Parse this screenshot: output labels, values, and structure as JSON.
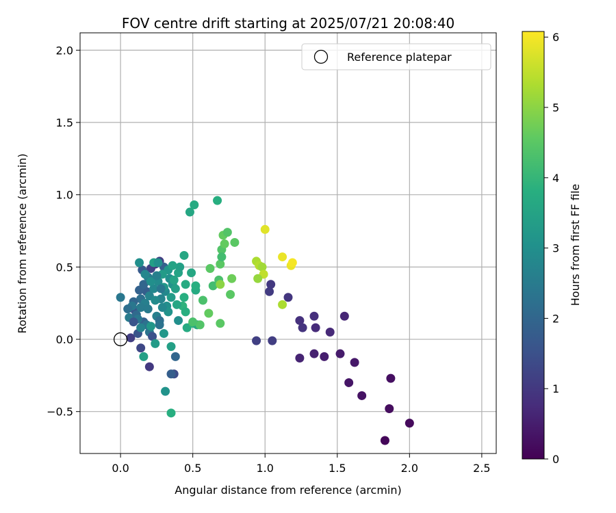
{
  "chart_data": {
    "type": "scatter",
    "title": "FOV centre drift starting at 2025/07/21 20:08:40",
    "xlabel": "Angular distance from reference (arcmin)",
    "ylabel": "Rotation from reference (arcmin)",
    "xlim": [
      -0.28,
      2.6
    ],
    "ylim": [
      -0.79,
      2.12
    ],
    "xticks": [
      0.0,
      0.5,
      1.0,
      1.5,
      2.0,
      2.5
    ],
    "xtick_labels": [
      "0.0",
      "0.5",
      "1.0",
      "1.5",
      "2.0",
      "2.5"
    ],
    "yticks": [
      -0.5,
      0.0,
      0.5,
      1.0,
      1.5,
      2.0
    ],
    "ytick_labels": [
      "−0.5",
      "0.0",
      "0.5",
      "1.0",
      "1.5",
      "2.0"
    ],
    "grid": true,
    "legend": {
      "position": "top-right",
      "entries": [
        "Reference platepar"
      ]
    },
    "reference_point": {
      "x": 0.0,
      "y": 0.0
    },
    "colorbar": {
      "label": "Hours from first FF file",
      "colormap": "viridis",
      "range": [
        0,
        6.08
      ],
      "ticks": [
        0,
        1,
        2,
        3,
        4,
        5,
        6
      ],
      "tick_labels": [
        "0",
        "1",
        "2",
        "3",
        "4",
        "5",
        "6"
      ]
    },
    "points": [
      [
        1.83,
        -0.7,
        0.1
      ],
      [
        2.0,
        -0.58,
        0.15
      ],
      [
        1.86,
        -0.48,
        0.2
      ],
      [
        1.87,
        -0.27,
        0.25
      ],
      [
        1.67,
        -0.39,
        0.3
      ],
      [
        1.58,
        -0.3,
        0.35
      ],
      [
        1.62,
        -0.16,
        0.4
      ],
      [
        1.52,
        -0.1,
        0.45
      ],
      [
        1.41,
        -0.12,
        0.5
      ],
      [
        1.34,
        -0.1,
        0.55
      ],
      [
        1.24,
        -0.13,
        0.6
      ],
      [
        1.55,
        0.16,
        0.65
      ],
      [
        1.45,
        0.05,
        0.7
      ],
      [
        1.35,
        0.08,
        0.75
      ],
      [
        1.34,
        0.16,
        0.8
      ],
      [
        1.24,
        0.13,
        0.85
      ],
      [
        1.26,
        0.08,
        0.9
      ],
      [
        1.16,
        0.29,
        0.95
      ],
      [
        1.04,
        0.38,
        1.0
      ],
      [
        1.03,
        0.33,
        1.05
      ],
      [
        1.05,
        -0.01,
        1.1
      ],
      [
        0.94,
        -0.01,
        1.15
      ],
      [
        0.2,
        -0.19,
        1.0
      ],
      [
        0.07,
        0.01,
        1.1
      ],
      [
        0.14,
        -0.06,
        1.3
      ],
      [
        0.37,
        -0.24,
        1.4
      ],
      [
        0.35,
        -0.24,
        1.8
      ],
      [
        0.38,
        -0.12,
        2.0
      ],
      [
        0.1,
        0.2,
        1.5
      ],
      [
        0.12,
        0.04,
        1.6
      ],
      [
        0.15,
        0.48,
        1.7
      ],
      [
        0.21,
        0.49,
        1.2
      ],
      [
        0.24,
        0.52,
        0.9
      ],
      [
        0.27,
        0.54,
        1.1
      ],
      [
        0.3,
        0.5,
        1.9
      ],
      [
        0.22,
        0.41,
        2.1
      ],
      [
        0.18,
        0.33,
        1.8
      ],
      [
        0.14,
        0.28,
        2.2
      ],
      [
        0.09,
        0.26,
        2.0
      ],
      [
        0.08,
        0.23,
        2.4
      ],
      [
        0.06,
        0.15,
        2.5
      ],
      [
        0.11,
        0.17,
        2.1
      ],
      [
        0.16,
        0.12,
        1.9
      ],
      [
        0.2,
        0.05,
        2.3
      ],
      [
        0.25,
        0.16,
        2.6
      ],
      [
        0.28,
        0.28,
        2.7
      ],
      [
        0.31,
        0.33,
        2.8
      ],
      [
        0.34,
        0.42,
        3.0
      ],
      [
        0.36,
        0.38,
        3.1
      ],
      [
        0.33,
        0.48,
        3.2
      ],
      [
        0.29,
        0.45,
        3.3
      ],
      [
        0.26,
        0.4,
        2.9
      ],
      [
        0.23,
        0.35,
        2.8
      ],
      [
        0.2,
        0.3,
        2.7
      ],
      [
        0.17,
        0.25,
        2.6
      ],
      [
        0.14,
        0.22,
        2.5
      ],
      [
        0.12,
        0.14,
        2.4
      ],
      [
        0.18,
        0.1,
        2.3
      ],
      [
        0.22,
        0.02,
        1.5
      ],
      [
        0.27,
        0.13,
        2.2
      ],
      [
        0.32,
        0.23,
        3.0
      ],
      [
        0.35,
        0.29,
        3.3
      ],
      [
        0.38,
        0.35,
        3.4
      ],
      [
        0.4,
        0.46,
        3.5
      ],
      [
        0.41,
        0.5,
        3.4
      ],
      [
        0.44,
        0.58,
        3.6
      ],
      [
        0.45,
        0.38,
        3.7
      ],
      [
        0.44,
        0.29,
        3.8
      ],
      [
        0.43,
        0.23,
        3.9
      ],
      [
        0.45,
        0.19,
        3.8
      ],
      [
        0.4,
        0.13,
        3.0
      ],
      [
        0.46,
        0.08,
        3.7
      ],
      [
        0.5,
        0.11,
        3.9
      ],
      [
        0.53,
        0.1,
        3.6
      ],
      [
        0.49,
        0.46,
        3.6
      ],
      [
        0.52,
        0.34,
        3.7
      ],
      [
        0.52,
        0.37,
        3.8
      ],
      [
        0.48,
        0.88,
        3.6
      ],
      [
        0.51,
        0.93,
        3.7
      ],
      [
        0.67,
        0.96,
        3.8
      ],
      [
        0.55,
        0.1,
        4.4
      ],
      [
        0.5,
        0.12,
        4.3
      ],
      [
        0.57,
        0.27,
        4.3
      ],
      [
        0.61,
        0.18,
        4.6
      ],
      [
        0.62,
        0.49,
        4.5
      ],
      [
        0.64,
        0.37,
        4.2
      ],
      [
        0.68,
        0.41,
        4.3
      ],
      [
        0.69,
        0.11,
        4.5
      ],
      [
        0.69,
        0.52,
        4.5
      ],
      [
        0.7,
        0.62,
        4.4
      ],
      [
        0.71,
        0.72,
        4.6
      ],
      [
        0.7,
        0.57,
        4.2
      ],
      [
        0.72,
        0.66,
        4.6
      ],
      [
        0.74,
        0.74,
        4.4
      ],
      [
        0.76,
        0.31,
        4.5
      ],
      [
        0.77,
        0.42,
        4.7
      ],
      [
        0.79,
        0.67,
        4.5
      ],
      [
        0.69,
        0.38,
        5.0
      ],
      [
        0.94,
        0.54,
        5.3
      ],
      [
        0.96,
        0.51,
        5.4
      ],
      [
        0.98,
        0.5,
        5.2
      ],
      [
        0.99,
        0.45,
        5.5
      ],
      [
        0.95,
        0.42,
        5.1
      ],
      [
        1.0,
        0.76,
        5.8
      ],
      [
        1.12,
        0.24,
        5.3
      ],
      [
        1.12,
        0.57,
        5.9
      ],
      [
        1.18,
        0.51,
        5.9
      ],
      [
        1.19,
        0.53,
        6.0
      ],
      [
        0.0,
        0.29,
        2.4
      ],
      [
        0.05,
        0.21,
        2.2
      ],
      [
        0.09,
        0.12,
        1.6
      ],
      [
        0.13,
        0.34,
        1.9
      ],
      [
        0.16,
        0.38,
        2.0
      ],
      [
        0.19,
        0.43,
        2.5
      ],
      [
        0.21,
        0.4,
        3.0
      ],
      [
        0.25,
        0.44,
        2.6
      ],
      [
        0.24,
        0.27,
        2.9
      ],
      [
        0.3,
        0.36,
        3.2
      ],
      [
        0.33,
        0.19,
        3.1
      ],
      [
        0.27,
        0.1,
        2.3
      ],
      [
        0.19,
        0.21,
        2.5
      ],
      [
        0.14,
        0.08,
        2.7
      ],
      [
        0.13,
        0.53,
        3.0
      ],
      [
        0.16,
        -0.12,
        3.4
      ],
      [
        0.24,
        -0.03,
        3.3
      ],
      [
        0.3,
        0.04,
        3.2
      ],
      [
        0.31,
        -0.36,
        3.1
      ],
      [
        0.35,
        -0.05,
        3.4
      ],
      [
        0.35,
        -0.51,
        3.8
      ],
      [
        0.37,
        0.41,
        3.5
      ],
      [
        0.39,
        0.24,
        3.6
      ],
      [
        0.29,
        0.22,
        2.8
      ],
      [
        0.21,
        0.09,
        3.2
      ],
      [
        0.17,
        0.45,
        2.8
      ],
      [
        0.23,
        0.53,
        3.4
      ],
      [
        0.26,
        0.53,
        3.0
      ],
      [
        0.36,
        0.51,
        3.5
      ],
      [
        0.28,
        0.35,
        2.4
      ]
    ]
  }
}
